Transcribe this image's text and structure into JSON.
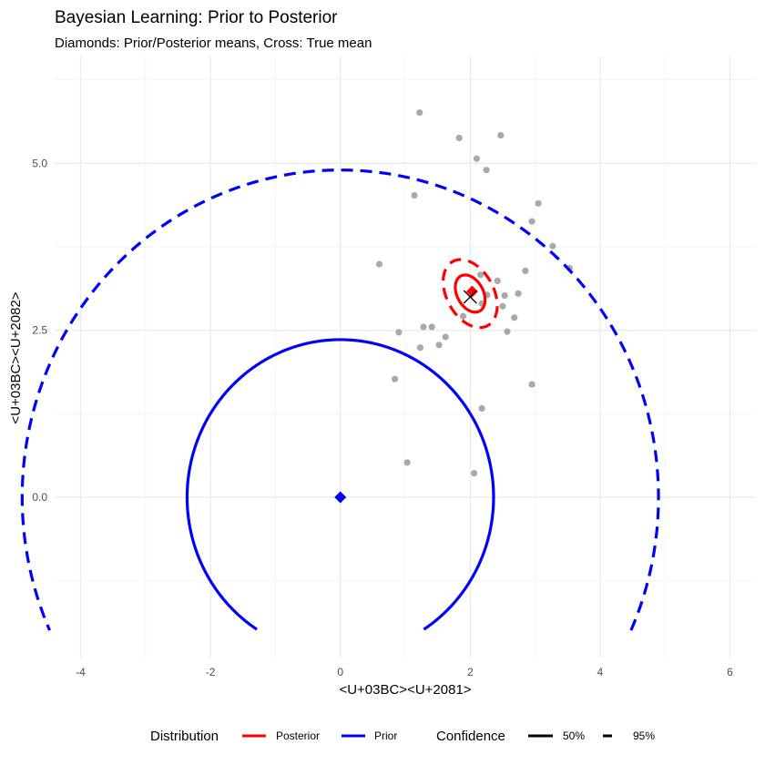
{
  "chart_data": {
    "type": "scatter",
    "title": "Bayesian Learning: Prior to Posterior",
    "subtitle": "Diamonds: Prior/Posterior means, Cross: True mean",
    "xlabel": "<U+03BC><U+2081>",
    "ylabel": "<U+03BC><U+2082>",
    "xlim": [
      -4.4,
      6.4
    ],
    "ylim": [
      -2.4,
      6.6
    ],
    "x_ticks": [
      -4,
      -2,
      0,
      2,
      4,
      6
    ],
    "x_tick_labels": [
      "-4",
      "-2",
      "0",
      "2",
      "4",
      "6"
    ],
    "y_ticks": [
      0,
      2.5,
      5
    ],
    "y_tick_labels": [
      "0.0",
      "2.5",
      "5.0"
    ],
    "grid": true,
    "legend_position": "bottom",
    "observations": {
      "color": "#8c8c8c",
      "points": [
        [
          1.22,
          5.76
        ],
        [
          1.83,
          5.38
        ],
        [
          2.47,
          5.42
        ],
        [
          2.1,
          5.07
        ],
        [
          2.25,
          4.9
        ],
        [
          1.14,
          4.52
        ],
        [
          3.05,
          4.4
        ],
        [
          2.95,
          4.13
        ],
        [
          3.27,
          3.76
        ],
        [
          3.53,
          3.43
        ],
        [
          0.6,
          3.49
        ],
        [
          2.85,
          3.39
        ],
        [
          2.16,
          3.33
        ],
        [
          2.42,
          3.24
        ],
        [
          2.53,
          3.02
        ],
        [
          2.26,
          3.03
        ],
        [
          2.74,
          3.05
        ],
        [
          2.18,
          2.9
        ],
        [
          2.5,
          2.86
        ],
        [
          2.68,
          2.69
        ],
        [
          1.89,
          2.71
        ],
        [
          1.28,
          2.55
        ],
        [
          1.41,
          2.55
        ],
        [
          2.57,
          2.48
        ],
        [
          0.9,
          2.47
        ],
        [
          1.62,
          2.4
        ],
        [
          1.52,
          2.28
        ],
        [
          1.23,
          2.24
        ],
        [
          0.84,
          1.77
        ],
        [
          2.95,
          1.69
        ],
        [
          2.18,
          1.33
        ],
        [
          1.03,
          0.52
        ],
        [
          2.06,
          0.36
        ]
      ]
    },
    "prior_mean": [
      0,
      0
    ],
    "posterior_mean": [
      2.03,
      3.08
    ],
    "true_mean": [
      2,
      3
    ],
    "contours": [
      {
        "distribution": "Prior",
        "confidence": "50%",
        "center": [
          0,
          0
        ],
        "r": 2.36,
        "ry": 2.36,
        "angle": 0,
        "clip_ymin": -2.0
      },
      {
        "distribution": "Prior",
        "confidence": "95%",
        "center": [
          0,
          0
        ],
        "r": 4.9,
        "ry": 4.9,
        "angle": 0,
        "clip_ymin": -2.0
      },
      {
        "distribution": "Posterior",
        "confidence": "50%",
        "center": [
          2.0,
          3.05
        ],
        "r": 0.2,
        "ry": 0.3,
        "angle": 30,
        "clip_ymin": -2.0
      },
      {
        "distribution": "Posterior",
        "confidence": "95%",
        "center": [
          2.0,
          3.05
        ],
        "r": 0.36,
        "ry": 0.55,
        "angle": 30,
        "clip_ymin": -2.0
      }
    ],
    "legend": {
      "distribution_title": "Distribution",
      "distribution_items": [
        {
          "label": "Posterior",
          "color": "#ff0000"
        },
        {
          "label": "Prior",
          "color": "#0000ff"
        }
      ],
      "confidence_title": "Confidence",
      "confidence_items": [
        {
          "label": "50%",
          "linetype": "solid"
        },
        {
          "label": "95%",
          "linetype": "dashed"
        }
      ]
    },
    "colors": {
      "prior": "#0000ff",
      "posterior": "#ff0000",
      "true_mean": "#000000",
      "grid_major": "#ebebeb",
      "grid_minor": "#f4f4f4"
    }
  }
}
